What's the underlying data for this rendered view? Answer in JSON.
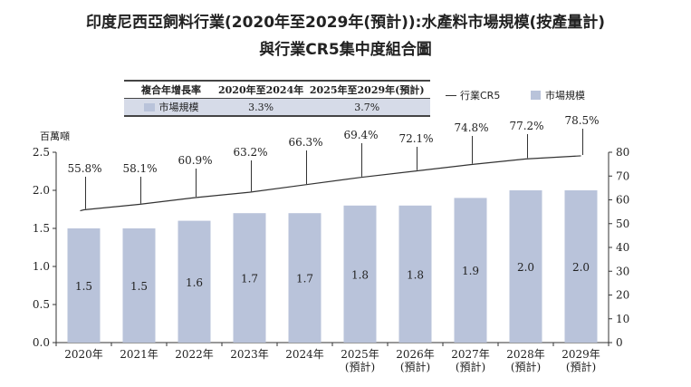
{
  "title": {
    "line1": "印度尼西亞飼料行業(2020年至2029年(預計)):水產料市場規模(按產量計)",
    "line2": "與行業CR5集中度組合圖"
  },
  "cagr_table": {
    "headers": [
      "複合年增長率",
      "2020年至2024年",
      "2025年至2029年(預計)"
    ],
    "row": {
      "label": "市場規模",
      "values": [
        "3.3%",
        "3.7%"
      ]
    }
  },
  "legend": {
    "line": "行業CR5",
    "bar": "市場規模"
  },
  "colors": {
    "bar": "#b9c3da",
    "line": "#333333"
  },
  "chart_data": {
    "type": "bar+line",
    "title": "印度尼西亞飼料行業(2020年至2029年(預計)):水產料市場規模(按產量計)與行業CR5集中度組合圖",
    "ylabel_left": "百萬噸",
    "categories": [
      [
        "2020年"
      ],
      [
        "2021年"
      ],
      [
        "2022年"
      ],
      [
        "2023年"
      ],
      [
        "2024年"
      ],
      [
        "2025年",
        "(預計)"
      ],
      [
        "2026年",
        "(預計)"
      ],
      [
        "2027年",
        "(預計)"
      ],
      [
        "2028年",
        "(預計)"
      ],
      [
        "2029年",
        "(預計)"
      ]
    ],
    "series": [
      {
        "name": "市場規模",
        "type": "bar",
        "axis": "left",
        "values": [
          1.5,
          1.5,
          1.6,
          1.7,
          1.7,
          1.8,
          1.8,
          1.9,
          2.0,
          2.0
        ],
        "labels": [
          "1.5",
          "1.5",
          "1.6",
          "1.7",
          "1.7",
          "1.8",
          "1.8",
          "1.9",
          "2.0",
          "2.0"
        ]
      },
      {
        "name": "行業CR5",
        "type": "line",
        "axis": "right",
        "values": [
          55.8,
          58.1,
          60.9,
          63.2,
          66.3,
          69.4,
          72.1,
          74.8,
          77.2,
          78.5
        ],
        "labels": [
          "55.8%",
          "58.1%",
          "60.9%",
          "63.2%",
          "66.3%",
          "69.4%",
          "72.1%",
          "74.8%",
          "77.2%",
          "78.5%"
        ]
      }
    ],
    "y_left": {
      "min": 0,
      "max": 2.5,
      "ticks": [
        "0.0",
        "0.5",
        "1.0",
        "1.5",
        "2.0",
        "2.5"
      ]
    },
    "y_right": {
      "min": 0,
      "max": 80,
      "ticks": [
        "0",
        "10",
        "20",
        "30",
        "40",
        "50",
        "60",
        "70",
        "80"
      ]
    }
  }
}
